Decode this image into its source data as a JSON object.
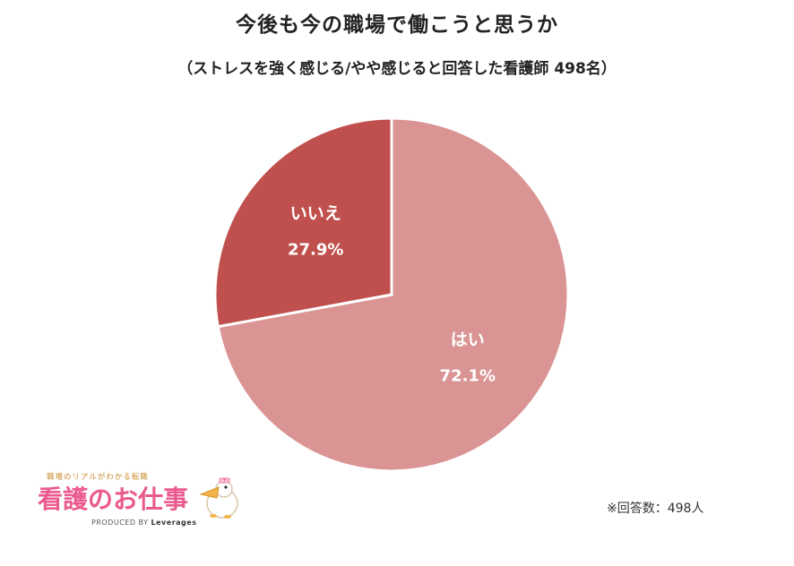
{
  "chart_data": {
    "type": "pie",
    "title": "今後も今の職場で働こうと思うか",
    "subtitle": "（ストレスを強く感じる/やや感じると回答した看護師 498名）",
    "slices": [
      {
        "label": "はい",
        "value": 72.1,
        "display": "72.1%",
        "color": "#da9494"
      },
      {
        "label": "いいえ",
        "value": 27.9,
        "display": "27.9%",
        "color": "#c0504d"
      }
    ],
    "start": "12 o'clock",
    "direction": "clockwise",
    "data_labels": "inside",
    "legend": "none"
  },
  "footnote": "※回答数：498人",
  "logo": {
    "tagline": "職場のリアルがわかる転職",
    "name": "看護のお仕事",
    "produced_by": "PRODUCED BY",
    "brand": "Leverages"
  }
}
